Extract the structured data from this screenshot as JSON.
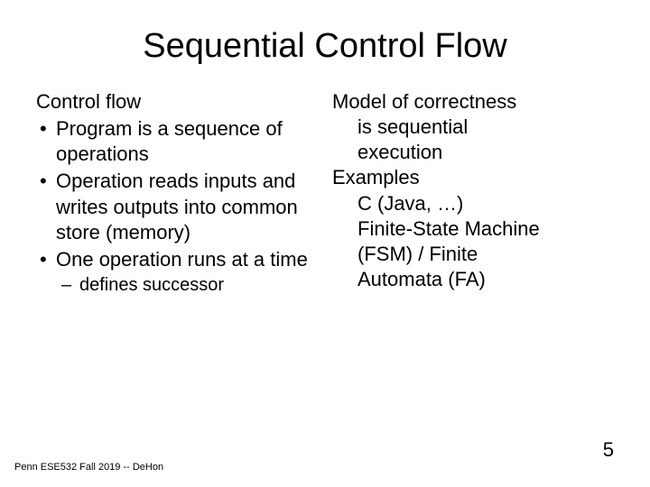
{
  "title": "Sequential Control Flow",
  "left": {
    "heading": "Control flow",
    "bullets": [
      "Program is a sequence of operations",
      "Operation reads inputs and writes outputs into common store (memory)",
      "One operation runs at a time"
    ],
    "sub": "defines successor"
  },
  "right": {
    "line1": "Model of correctness",
    "line1_indent_a": "is sequential",
    "line1_indent_b": "execution",
    "line2": "Examples",
    "line2_indent_a": "C (Java, …)",
    "line2_indent_b": "Finite-State Machine",
    "line2_indent_c": "(FSM) / Finite",
    "line2_indent_d": "Automata (FA)"
  },
  "footer": "Penn ESE532 Fall 2019 -- DeHon",
  "page_number": "5"
}
